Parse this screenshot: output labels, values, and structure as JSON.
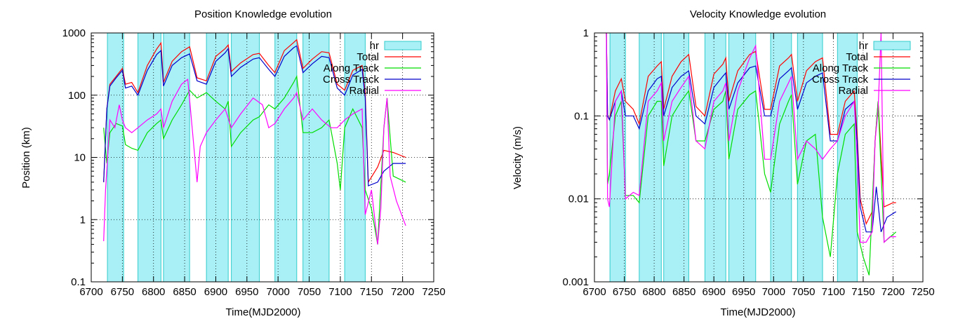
{
  "chart_data": [
    {
      "type": "line",
      "title": "Position Knowledge evolution",
      "xlabel": "Time(MJD2000)",
      "ylabel": "Position (km)",
      "xlim": [
        6700,
        7250
      ],
      "ylim": [
        0.1,
        1000
      ],
      "y_scale": "log",
      "x_ticks": [
        6700,
        6750,
        6800,
        6850,
        6900,
        6950,
        7000,
        7050,
        7100,
        7150,
        7200,
        7250
      ],
      "y_ticks": [
        0.1,
        1,
        10,
        100,
        1000
      ],
      "y_tick_labels": [
        "0.1",
        "1",
        "10",
        "100",
        "1000"
      ],
      "grid": true,
      "legend_position": "top-right",
      "hr_label": "hr",
      "hr_color": "#a8f0f6",
      "hr_bands": [
        [
          6726,
          6752
        ],
        [
          6775,
          6812
        ],
        [
          6816,
          6858
        ],
        [
          6885,
          6920
        ],
        [
          6925,
          6970
        ],
        [
          6995,
          7030
        ],
        [
          7040,
          7082
        ],
        [
          7107,
          7140
        ]
      ],
      "series": [
        {
          "name": "Total",
          "color": "#ff0000",
          "x": [
            6720,
            6725,
            6730,
            6740,
            6750,
            6755,
            6765,
            6775,
            6790,
            6805,
            6812,
            6816,
            6830,
            6845,
            6858,
            6870,
            6885,
            6900,
            6915,
            6920,
            6925,
            6940,
            6960,
            6970,
            6985,
            6995,
            7010,
            7025,
            7030,
            7040,
            7055,
            7070,
            7082,
            7095,
            7107,
            7120,
            7135,
            7140,
            7145,
            7160,
            7170,
            7185,
            7205
          ],
          "y": [
            4,
            60,
            150,
            200,
            270,
            150,
            160,
            110,
            300,
            550,
            690,
            160,
            350,
            500,
            600,
            190,
            170,
            420,
            560,
            640,
            240,
            330,
            450,
            470,
            300,
            230,
            520,
            700,
            780,
            270,
            380,
            500,
            480,
            150,
            120,
            250,
            300,
            110,
            4,
            7,
            13,
            12,
            10
          ]
        },
        {
          "name": "Along Track",
          "color": "#00dd00",
          "x": [
            6720,
            6725,
            6730,
            6740,
            6750,
            6755,
            6765,
            6775,
            6790,
            6805,
            6812,
            6816,
            6830,
            6845,
            6858,
            6870,
            6885,
            6900,
            6915,
            6920,
            6925,
            6940,
            6960,
            6970,
            6985,
            6995,
            7010,
            7025,
            7030,
            7040,
            7055,
            7070,
            7082,
            7095,
            7100,
            7107,
            7120,
            7135,
            7140,
            7150,
            7160,
            7170,
            7175,
            7185,
            7205
          ],
          "y": [
            30,
            8,
            25,
            35,
            32,
            16,
            14,
            13,
            25,
            35,
            40,
            20,
            40,
            70,
            120,
            90,
            110,
            80,
            60,
            80,
            15,
            25,
            40,
            45,
            70,
            60,
            90,
            160,
            200,
            25,
            25,
            30,
            40,
            8,
            3,
            30,
            60,
            30,
            3,
            1.5,
            0.4,
            30,
            90,
            5,
            4
          ]
        },
        {
          "name": "Cross Track",
          "color": "#0000cc",
          "x": [
            6720,
            6725,
            6730,
            6740,
            6750,
            6755,
            6765,
            6775,
            6790,
            6805,
            6812,
            6816,
            6830,
            6845,
            6858,
            6870,
            6885,
            6900,
            6915,
            6920,
            6925,
            6940,
            6960,
            6970,
            6985,
            6995,
            7010,
            7025,
            7030,
            7040,
            7055,
            7070,
            7082,
            7095,
            7107,
            7120,
            7135,
            7140,
            7145,
            7160,
            7170,
            7185,
            7205
          ],
          "y": [
            4,
            60,
            140,
            190,
            250,
            130,
            140,
            100,
            250,
            450,
            520,
            140,
            300,
            400,
            460,
            170,
            150,
            350,
            480,
            560,
            200,
            280,
            380,
            400,
            260,
            200,
            420,
            580,
            620,
            230,
            320,
            420,
            400,
            130,
            100,
            210,
            260,
            90,
            3.5,
            4,
            6,
            8,
            8
          ]
        },
        {
          "name": "Radial",
          "color": "#ff00ff",
          "x": [
            6720,
            6723,
            6730,
            6738,
            6745,
            6750,
            6755,
            6765,
            6775,
            6790,
            6805,
            6812,
            6816,
            6830,
            6845,
            6855,
            6860,
            6870,
            6875,
            6885,
            6900,
            6915,
            6925,
            6940,
            6960,
            6975,
            6985,
            6995,
            7010,
            7025,
            7030,
            7040,
            7055,
            7070,
            7085,
            7095,
            7107,
            7120,
            7135,
            7140,
            7150,
            7160,
            7165,
            7170,
            7175,
            7180,
            7190,
            7205
          ],
          "y": [
            0.45,
            3,
            40,
            30,
            70,
            40,
            30,
            25,
            30,
            40,
            50,
            60,
            30,
            80,
            150,
            180,
            50,
            4,
            15,
            25,
            40,
            60,
            30,
            50,
            90,
            70,
            30,
            35,
            60,
            90,
            110,
            40,
            60,
            40,
            30,
            30,
            40,
            50,
            60,
            1.2,
            3,
            0.4,
            1.5,
            30,
            90,
            5,
            2,
            0.8
          ]
        }
      ]
    },
    {
      "type": "line",
      "title": "Velocity Knowledge evolution",
      "xlabel": "Time(MJD2000)",
      "ylabel": "Velocity (m/s)",
      "xlim": [
        6700,
        7250
      ],
      "ylim": [
        0.001,
        1
      ],
      "y_scale": "log",
      "x_ticks": [
        6700,
        6750,
        6800,
        6850,
        6900,
        6950,
        7000,
        7050,
        7100,
        7150,
        7200,
        7250
      ],
      "y_ticks": [
        0.001,
        0.01,
        0.1,
        1
      ],
      "y_tick_labels": [
        "0.001",
        "0.01",
        "0.1",
        "1"
      ],
      "grid": true,
      "legend_position": "top-right",
      "hr_label": "hr",
      "hr_color": "#a8f0f6",
      "hr_bands": [
        [
          6726,
          6752
        ],
        [
          6775,
          6812
        ],
        [
          6816,
          6858
        ],
        [
          6885,
          6920
        ],
        [
          6925,
          6970
        ],
        [
          6995,
          7030
        ],
        [
          7040,
          7082
        ],
        [
          7107,
          7140
        ]
      ],
      "series": [
        {
          "name": "Total",
          "color": "#ff0000",
          "x": [
            6720,
            6722,
            6725,
            6735,
            6745,
            6752,
            6765,
            6775,
            6790,
            6805,
            6812,
            6816,
            6830,
            6845,
            6858,
            6870,
            6885,
            6900,
            6915,
            6920,
            6925,
            6940,
            6960,
            6970,
            6985,
            6995,
            7010,
            7025,
            7030,
            7040,
            7055,
            7070,
            7082,
            7095,
            7107,
            7120,
            7135,
            7140,
            7145,
            7155,
            7165,
            7170,
            7175,
            7185,
            7200,
            7205
          ],
          "y": [
            1,
            0.1,
            0.09,
            0.2,
            0.28,
            0.15,
            0.12,
            0.08,
            0.3,
            0.4,
            0.45,
            0.12,
            0.3,
            0.45,
            0.55,
            0.13,
            0.1,
            0.32,
            0.42,
            0.5,
            0.15,
            0.35,
            0.55,
            0.6,
            0.12,
            0.12,
            0.4,
            0.5,
            0.55,
            0.15,
            0.35,
            0.45,
            0.5,
            0.06,
            0.06,
            0.15,
            0.2,
            0.06,
            0.01,
            0.005,
            0.007,
            0.05,
            0.15,
            0.008,
            0.009,
            0.009
          ]
        },
        {
          "name": "Along Track",
          "color": "#00dd00",
          "x": [
            6720,
            6722,
            6725,
            6735,
            6745,
            6752,
            6765,
            6775,
            6790,
            6805,
            6812,
            6816,
            6830,
            6845,
            6858,
            6870,
            6885,
            6900,
            6915,
            6920,
            6925,
            6940,
            6960,
            6970,
            6985,
            6995,
            7010,
            7025,
            7030,
            7040,
            7055,
            7070,
            7082,
            7095,
            7107,
            7120,
            7135,
            7140,
            7150,
            7160,
            7170,
            7175,
            7185,
            7205
          ],
          "y": [
            1,
            0.015,
            0.02,
            0.1,
            0.15,
            0.011,
            0.011,
            0.009,
            0.1,
            0.15,
            0.15,
            0.025,
            0.1,
            0.15,
            0.2,
            0.05,
            0.05,
            0.12,
            0.15,
            0.2,
            0.03,
            0.12,
            0.18,
            0.2,
            0.02,
            0.012,
            0.08,
            0.15,
            0.18,
            0.015,
            0.05,
            0.06,
            0.006,
            0.002,
            0.02,
            0.06,
            0.08,
            0.004,
            0.002,
            0.0012,
            0.05,
            0.15,
            0.003,
            0.004
          ]
        },
        {
          "name": "Cross Track",
          "color": "#0000cc",
          "x": [
            6720,
            6722,
            6725,
            6735,
            6745,
            6752,
            6765,
            6775,
            6790,
            6805,
            6812,
            6816,
            6830,
            6845,
            6858,
            6870,
            6885,
            6900,
            6915,
            6920,
            6925,
            6940,
            6960,
            6970,
            6985,
            6995,
            7010,
            7025,
            7030,
            7040,
            7055,
            7070,
            7082,
            7095,
            7107,
            7120,
            7135,
            7140,
            7145,
            7155,
            7165,
            7172,
            7180,
            7190,
            7205
          ],
          "y": [
            1,
            0.1,
            0.09,
            0.15,
            0.2,
            0.1,
            0.1,
            0.07,
            0.2,
            0.28,
            0.3,
            0.1,
            0.22,
            0.3,
            0.35,
            0.1,
            0.08,
            0.22,
            0.3,
            0.33,
            0.12,
            0.25,
            0.38,
            0.4,
            0.1,
            0.1,
            0.28,
            0.35,
            0.38,
            0.12,
            0.25,
            0.3,
            0.33,
            0.05,
            0.05,
            0.12,
            0.15,
            0.05,
            0.008,
            0.004,
            0.004,
            0.014,
            0.004,
            0.006,
            0.007
          ]
        },
        {
          "name": "Radial",
          "color": "#ff00ff",
          "x": [
            6720,
            6722,
            6725,
            6735,
            6745,
            6752,
            6765,
            6775,
            6790,
            6805,
            6812,
            6816,
            6830,
            6845,
            6858,
            6870,
            6885,
            6900,
            6915,
            6920,
            6925,
            6940,
            6960,
            6970,
            6985,
            6995,
            7010,
            7025,
            7030,
            7040,
            7055,
            7070,
            7082,
            7095,
            7107,
            7120,
            7135,
            7140,
            7145,
            7155,
            7165,
            7170,
            7175,
            7180,
            7185,
            7195,
            7205
          ],
          "y": [
            1,
            0.01,
            0.008,
            0.15,
            0.2,
            0.01,
            0.012,
            0.011,
            0.15,
            0.2,
            0.25,
            0.05,
            0.15,
            0.22,
            0.3,
            0.05,
            0.04,
            0.15,
            0.2,
            0.25,
            0.05,
            0.2,
            0.5,
            0.7,
            0.03,
            0.03,
            0.15,
            0.25,
            0.3,
            0.03,
            0.05,
            0.04,
            0.03,
            0.04,
            0.05,
            0.1,
            0.15,
            0.03,
            0.003,
            0.003,
            0.004,
            0.05,
            0.12,
            1,
            0.003,
            0.0035,
            0.0035
          ]
        }
      ]
    }
  ]
}
